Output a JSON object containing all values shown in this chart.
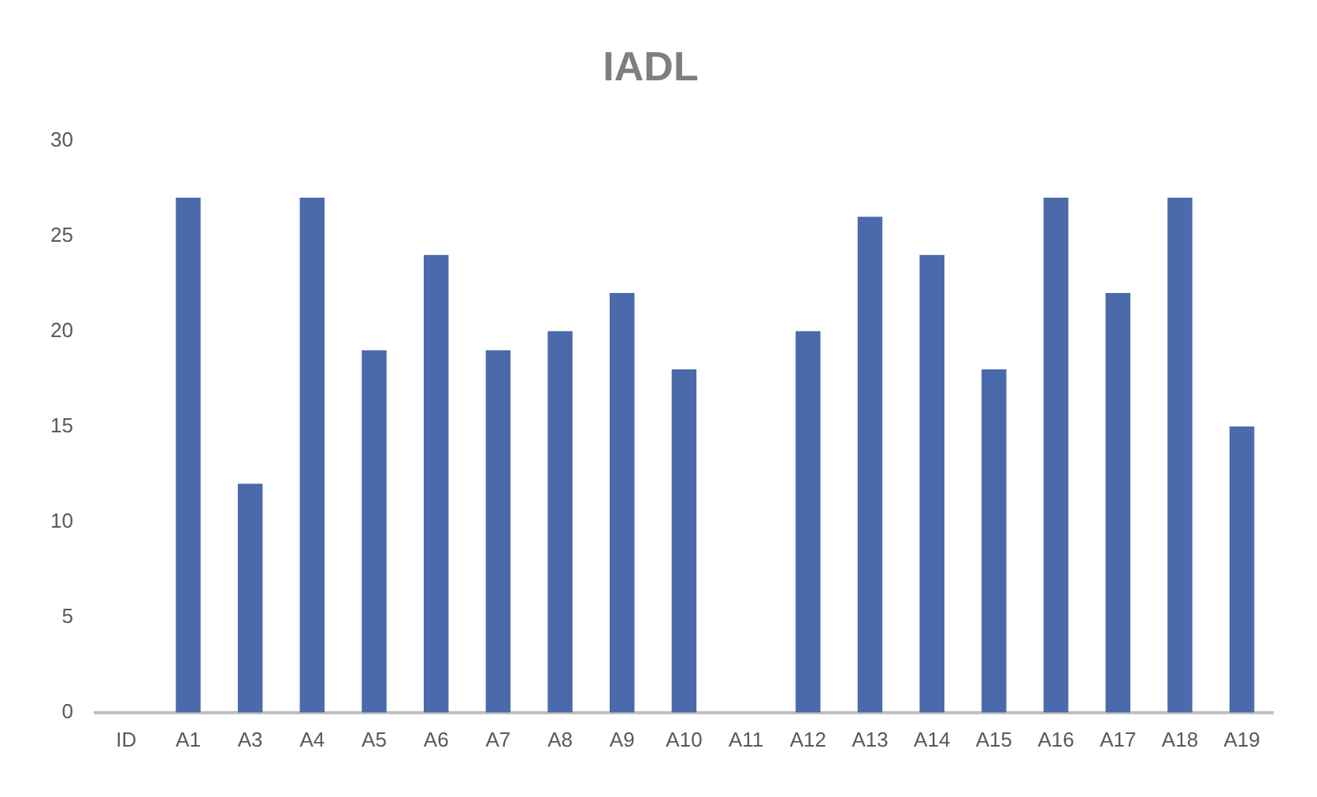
{
  "chart_data": {
    "type": "bar",
    "title": "IADL",
    "categories": [
      "ID",
      "A1",
      "A3",
      "A4",
      "A5",
      "A6",
      "A7",
      "A8",
      "A9",
      "A10",
      "A11",
      "A12",
      "A13",
      "A14",
      "A15",
      "A16",
      "A17",
      "A18",
      "A19"
    ],
    "values": [
      null,
      27,
      12,
      27,
      19,
      24,
      19,
      20,
      22,
      18,
      null,
      20,
      26,
      24,
      18,
      27,
      22,
      27,
      15
    ],
    "color": "#4a6aab",
    "ylim": [
      0,
      30
    ],
    "yticks": [
      0,
      5,
      10,
      15,
      20,
      25,
      30
    ],
    "grid": false,
    "legend": false
  }
}
